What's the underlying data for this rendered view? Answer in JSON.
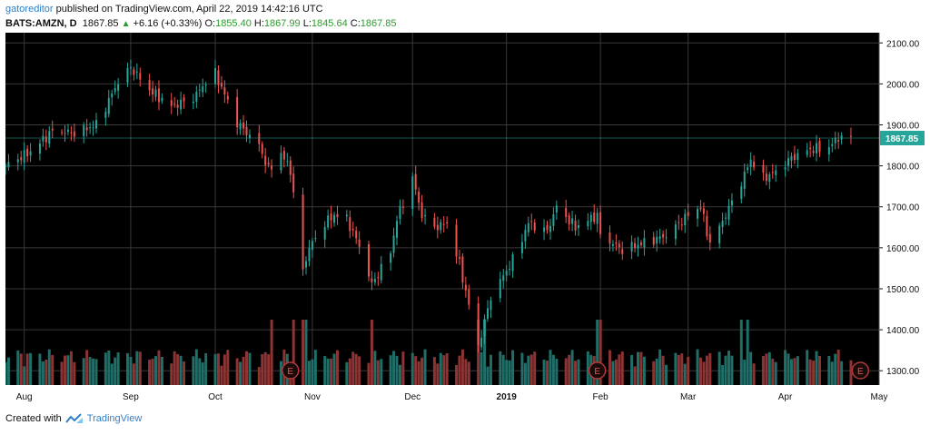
{
  "header": {
    "author": "gatoreditor",
    "published": "published on TradingView.com, April 22, 2019 14:42:16 UTC",
    "symbol": "BATS:AMZN, D",
    "last": "1867.85",
    "change_arrow": "▲",
    "change": "+6.16 (+0.33%)",
    "open_label": "O:",
    "open": "1855.40",
    "high_label": "H:",
    "high": "1867.99",
    "low_label": "L:",
    "low": "1845.64",
    "close_label": "C:",
    "close": "1867.85"
  },
  "footer": {
    "created_with": "Created with",
    "brand": "TradingView"
  },
  "colors": {
    "up": "#26a69a",
    "down": "#ef5350",
    "up_vol": "#1f6e67",
    "down_vol": "#8c3433",
    "background": "#000000",
    "grid": "#3a3a3a",
    "price_line": "#26a69a"
  },
  "chart_data": {
    "type": "candlestick",
    "price_label": "1867.85",
    "earnings_marker": "E",
    "earnings_dates": [
      "2018-10-25",
      "2019-01-31",
      "2019-04-25"
    ],
    "x_ticks": [
      {
        "date": "2018-08-01",
        "label": "Aug"
      },
      {
        "date": "2018-09-04",
        "label": "Sep"
      },
      {
        "date": "2018-10-01",
        "label": "Oct"
      },
      {
        "date": "2018-11-01",
        "label": "Nov"
      },
      {
        "date": "2018-12-03",
        "label": "Dec"
      },
      {
        "date": "2019-01-02",
        "label": "2019"
      },
      {
        "date": "2019-02-01",
        "label": "Feb"
      },
      {
        "date": "2019-03-01",
        "label": "Mar"
      },
      {
        "date": "2019-04-01",
        "label": "Apr"
      },
      {
        "date": "2019-05-01",
        "label": "May"
      }
    ],
    "x_range": [
      "2018-07-26",
      "2019-05-01"
    ],
    "y_ticks": [
      1300,
      1400,
      1500,
      1600,
      1700,
      1800,
      1900,
      2000,
      2100
    ],
    "y_tick_labels": [
      "1300.00",
      "1400.00",
      "1500.00",
      "1600.00",
      "1700.00",
      "1800.00",
      "1900.00",
      "2000.00",
      "2100.00"
    ],
    "ylim": [
      1265,
      2125
    ],
    "grid": true,
    "waypoints": [
      [
        "2018-07-26",
        1800
      ],
      [
        "2018-08-03",
        1835
      ],
      [
        "2018-08-10",
        1885
      ],
      [
        "2018-08-17",
        1880
      ],
      [
        "2018-08-24",
        1900
      ],
      [
        "2018-08-31",
        2005
      ],
      [
        "2018-09-04",
        2040
      ],
      [
        "2018-09-10",
        1985
      ],
      [
        "2018-09-17",
        1945
      ],
      [
        "2018-09-24",
        1965
      ],
      [
        "2018-09-28",
        2005
      ],
      [
        "2018-10-01",
        2025
      ],
      [
        "2018-10-08",
        1905
      ],
      [
        "2018-10-15",
        1850
      ],
      [
        "2018-10-18",
        1790
      ],
      [
        "2018-10-22",
        1830
      ],
      [
        "2018-10-25",
        1790
      ],
      [
        "2018-10-29",
        1545
      ],
      [
        "2018-10-31",
        1600
      ],
      [
        "2018-11-05",
        1660
      ],
      [
        "2018-11-08",
        1680
      ],
      [
        "2018-11-12",
        1670
      ],
      [
        "2018-11-16",
        1605
      ],
      [
        "2018-11-20",
        1510
      ],
      [
        "2018-11-26",
        1590
      ],
      [
        "2018-11-28",
        1670
      ],
      [
        "2018-12-03",
        1770
      ],
      [
        "2018-12-06",
        1680
      ],
      [
        "2018-12-10",
        1650
      ],
      [
        "2018-12-14",
        1660
      ],
      [
        "2018-12-18",
        1560
      ],
      [
        "2018-12-21",
        1460
      ],
      [
        "2018-12-24",
        1360
      ],
      [
        "2018-12-28",
        1480
      ],
      [
        "2019-01-04",
        1570
      ],
      [
        "2019-01-09",
        1660
      ],
      [
        "2019-01-15",
        1640
      ],
      [
        "2019-01-18",
        1700
      ],
      [
        "2019-01-24",
        1650
      ],
      [
        "2019-01-31",
        1680
      ],
      [
        "2019-02-01",
        1630
      ],
      [
        "2019-02-08",
        1595
      ],
      [
        "2019-02-14",
        1610
      ],
      [
        "2019-02-22",
        1630
      ],
      [
        "2019-03-01",
        1680
      ],
      [
        "2019-03-05",
        1700
      ],
      [
        "2019-03-08",
        1610
      ],
      [
        "2019-03-12",
        1665
      ],
      [
        "2019-03-18",
        1760
      ],
      [
        "2019-03-21",
        1815
      ],
      [
        "2019-03-25",
        1770
      ],
      [
        "2019-03-29",
        1785
      ],
      [
        "2019-04-03",
        1820
      ],
      [
        "2019-04-09",
        1840
      ],
      [
        "2019-04-15",
        1845
      ],
      [
        "2019-04-18",
        1870
      ],
      [
        "2019-04-22",
        1867.85
      ]
    ],
    "volume_spikes": [
      "2018-10-19",
      "2018-10-26",
      "2018-10-29",
      "2018-10-30",
      "2018-11-20",
      "2018-12-24",
      "2018-12-26",
      "2019-01-31",
      "2019-02-01",
      "2019-03-18",
      "2019-03-20"
    ]
  }
}
